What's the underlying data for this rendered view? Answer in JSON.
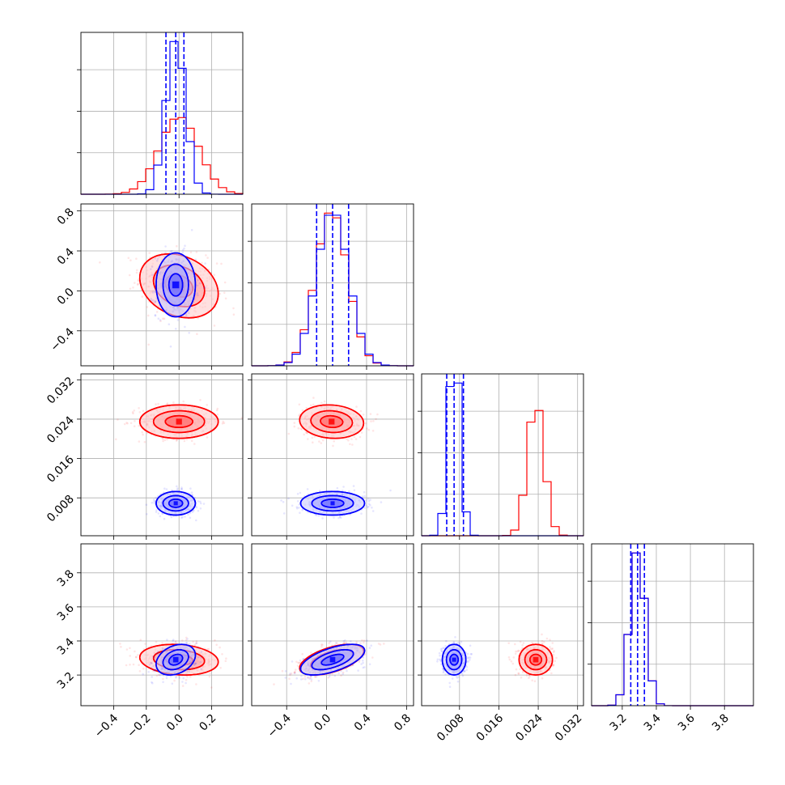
{
  "chart_data": {
    "type": "corner",
    "parameters": 4,
    "series": [
      {
        "color": "#ff0000",
        "mean": [
          0.0,
          0.05,
          0.0235,
          3.29
        ],
        "std": [
          0.12,
          0.16,
          0.0017,
          0.045
        ],
        "corr": [
          [
            1,
            -0.25,
            0,
            -0.15
          ],
          [
            -0.25,
            1,
            -0.1,
            0.55
          ],
          [
            0,
            -0.1,
            1,
            0
          ],
          [
            -0.15,
            0.55,
            0,
            1
          ]
        ]
      },
      {
        "color": "#0000ff",
        "mean": [
          -0.02,
          0.06,
          0.0069,
          3.29
        ],
        "std": [
          0.06,
          0.16,
          0.0012,
          0.045
        ],
        "corr": [
          [
            1,
            0,
            0,
            0.3
          ],
          [
            0,
            1,
            0,
            0.6
          ],
          [
            0,
            0,
            1,
            0
          ],
          [
            0.3,
            0.6,
            0,
            1
          ]
        ]
      }
    ],
    "quantile_lines": {
      "color": "#0000ff",
      "values": [
        [
          -0.08,
          -0.02,
          0.03
        ],
        [
          -0.1,
          0.06,
          0.22
        ],
        [
          0.0054,
          0.0069,
          0.0088
        ],
        [
          3.25,
          3.29,
          3.33
        ]
      ]
    },
    "ranges": [
      [
        -0.6,
        0.39
      ],
      [
        -0.75,
        0.87
      ],
      [
        0.0003,
        0.0332
      ],
      [
        3.02,
        3.97
      ]
    ],
    "axes": [
      {
        "ticks": [
          -0.4,
          -0.2,
          0.0,
          0.2
        ],
        "labels": [
          "−0.4",
          "−0.2",
          "0.0",
          "0.2"
        ]
      },
      {
        "ticks": [
          -0.4,
          0.0,
          0.4,
          0.8
        ],
        "labels": [
          "−0.4",
          "0.0",
          "0.4",
          "0.8"
        ]
      },
      {
        "ticks": [
          0.008,
          0.016,
          0.024,
          0.032
        ],
        "labels": [
          "0.008",
          "0.016",
          "0.024",
          "0.032"
        ]
      },
      {
        "ticks": [
          3.2,
          3.4,
          3.6,
          3.8
        ],
        "labels": [
          "3.2",
          "3.4",
          "3.6",
          "3.8"
        ]
      }
    ],
    "grid": true,
    "xlabel": "",
    "ylabel": ""
  }
}
